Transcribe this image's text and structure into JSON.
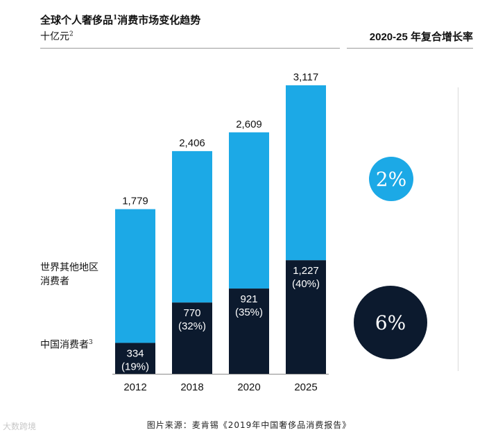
{
  "header": {
    "title": "全球个人奢侈品",
    "title_sup": "1",
    "title_rest": "消费市场变化趋势",
    "unit": "十亿元",
    "unit_sup": "2",
    "cagr_title": "2020-25 年复合增长率"
  },
  "legend": {
    "other": "世界其他地区消费者",
    "china": "中国消费者",
    "china_sup": "3"
  },
  "cagr": {
    "other": "2%",
    "china": "6%"
  },
  "source": "图片来源：麦肯锡《2019年中国奢侈品消费报告》",
  "watermark": "大数跨境",
  "colors": {
    "other": "#1ca9e6",
    "china": "#0c1a2e",
    "axis": "#8a8a8a"
  },
  "chart_data": {
    "type": "bar",
    "stacked": true,
    "categories": [
      "2012",
      "2018",
      "2020",
      "2025"
    ],
    "series": [
      {
        "name": "中国消费者",
        "values": [
          334,
          770,
          921,
          1227
        ],
        "labels": [
          "334",
          "770",
          "921",
          "1,227"
        ],
        "shares": [
          "(19%)",
          "(32%)",
          "(35%)",
          "(40%)"
        ]
      },
      {
        "name": "世界其他地区消费者",
        "values": [
          1445,
          1636,
          1688,
          1890
        ]
      }
    ],
    "totals": [
      1779,
      2406,
      2609,
      3117
    ],
    "total_labels": [
      "1,779",
      "2,406",
      "2,609",
      "3,117"
    ],
    "ylim": [
      0,
      3117
    ],
    "grid": false
  }
}
